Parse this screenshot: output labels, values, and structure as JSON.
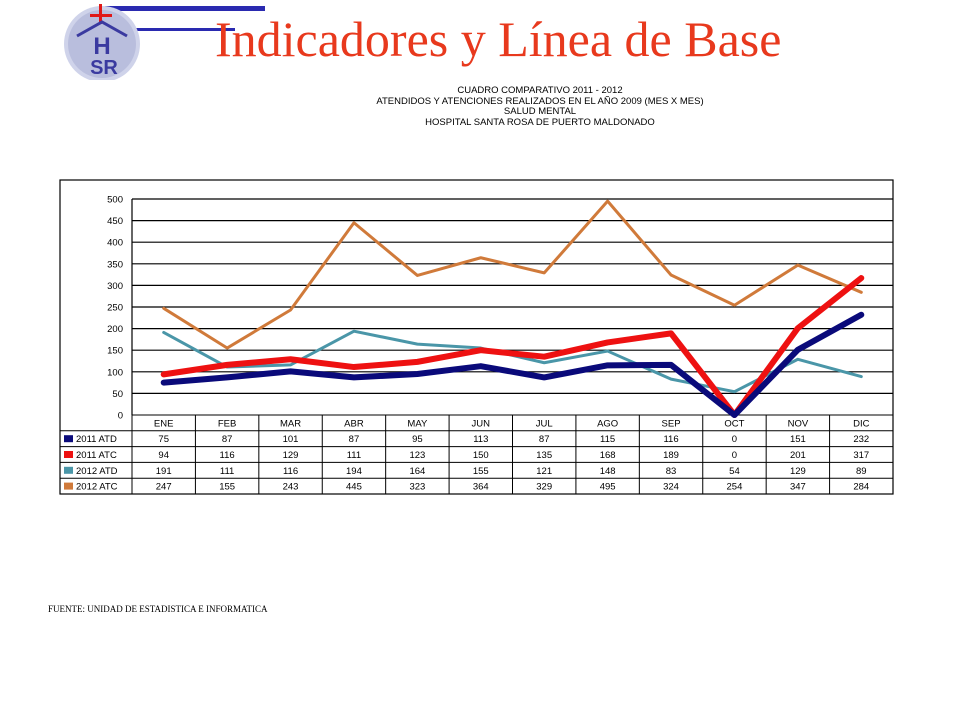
{
  "slide": {
    "title": "Indicadores y Línea de Base",
    "title_color": "#e8391d",
    "logo_text_1": "H",
    "logo_text_2": "SR",
    "source": "FUENTE: UNIDAD DE ESTADISTICA E INFORMATICA"
  },
  "chart_data": {
    "type": "line",
    "title_lines": [
      "CUADRO COMPARATIVO  2011 - 2012",
      "ATENDIDOS Y ATENCIONES  REALIZADOS EN  EL AÑO 2009 (MES X MES)",
      "SALUD MENTAL",
      "HOSPITAL SANTA ROSA DE PUERTO MALDONADO"
    ],
    "categories": [
      "ENE",
      "FEB",
      "MAR",
      "ABR",
      "MAY",
      "JUN",
      "JUL",
      "AGO",
      "SEP",
      "OCT",
      "NOV",
      "DIC"
    ],
    "ylim": [
      0,
      500
    ],
    "yticks": [
      0,
      50,
      100,
      150,
      200,
      250,
      300,
      350,
      400,
      450,
      500
    ],
    "grid": true,
    "legend": "data-table-below",
    "series": [
      {
        "name": "2011 ATD",
        "color": "#0a0a7a",
        "values": [
          75,
          87,
          101,
          87,
          95,
          113,
          87,
          115,
          116,
          0,
          151,
          232
        ]
      },
      {
        "name": "2011 ATC",
        "color": "#ee1111",
        "values": [
          94,
          116,
          129,
          111,
          123,
          150,
          135,
          168,
          189,
          0,
          201,
          317
        ]
      },
      {
        "name": "2012 ATD",
        "color": "#4a96a8",
        "values": [
          191,
          111,
          116,
          194,
          164,
          155,
          121,
          148,
          83,
          54,
          129,
          89
        ]
      },
      {
        "name": "2012 ATC",
        "color": "#d07a3a",
        "values": [
          247,
          155,
          243,
          445,
          323,
          364,
          329,
          495,
          324,
          254,
          347,
          284
        ]
      }
    ]
  }
}
